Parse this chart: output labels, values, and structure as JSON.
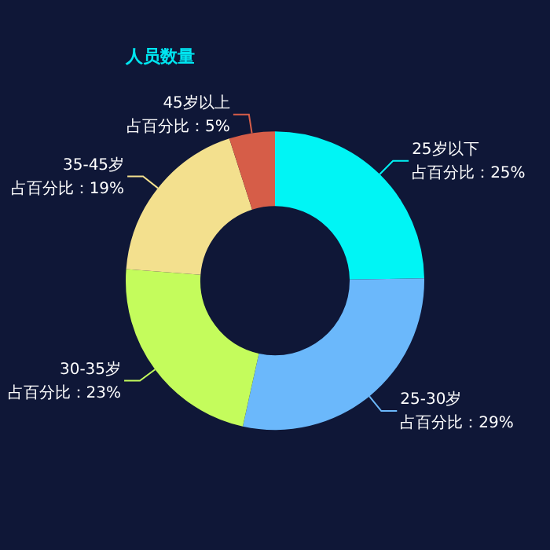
{
  "chart_data": {
    "type": "donut",
    "title": "人员数量",
    "categories": [
      "25岁以下",
      "25-30岁",
      "30-35岁",
      "35-45岁",
      "45岁以上"
    ],
    "values": [
      25,
      29,
      23,
      19,
      5
    ],
    "value_labels": [
      "占百分比：25%",
      "占百分比：29%",
      "占百分比：23%",
      "占百分比：19%",
      "占百分比：5%"
    ],
    "colors": [
      "#00f5f5",
      "#6bb8fb",
      "#c4fc5c",
      "#f3e08e",
      "#d65d48"
    ],
    "legend": false
  }
}
